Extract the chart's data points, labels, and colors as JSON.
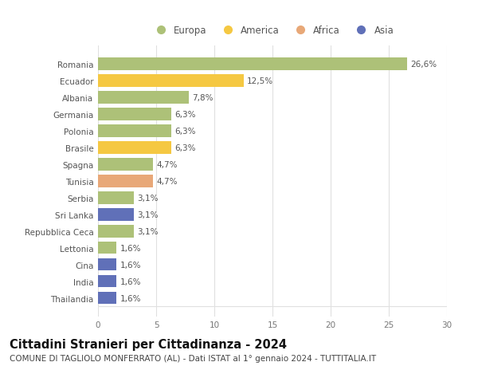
{
  "categories": [
    "Romania",
    "Ecuador",
    "Albania",
    "Germania",
    "Polonia",
    "Brasile",
    "Spagna",
    "Tunisia",
    "Serbia",
    "Sri Lanka",
    "Repubblica Ceca",
    "Lettonia",
    "Cina",
    "India",
    "Thailandia"
  ],
  "values": [
    26.6,
    12.5,
    7.8,
    6.3,
    6.3,
    6.3,
    4.7,
    4.7,
    3.1,
    3.1,
    3.1,
    1.6,
    1.6,
    1.6,
    1.6
  ],
  "labels": [
    "26,6%",
    "12,5%",
    "7,8%",
    "6,3%",
    "6,3%",
    "6,3%",
    "4,7%",
    "4,7%",
    "3,1%",
    "3,1%",
    "3,1%",
    "1,6%",
    "1,6%",
    "1,6%",
    "1,6%"
  ],
  "continents": [
    "Europa",
    "America",
    "Europa",
    "Europa",
    "Europa",
    "America",
    "Europa",
    "Africa",
    "Europa",
    "Asia",
    "Europa",
    "Europa",
    "Asia",
    "Asia",
    "Asia"
  ],
  "continent_colors": {
    "Europa": "#adc178",
    "America": "#f5c842",
    "Africa": "#e8a878",
    "Asia": "#6070b8"
  },
  "legend_order": [
    "Europa",
    "America",
    "Africa",
    "Asia"
  ],
  "title": "Cittadini Stranieri per Cittadinanza - 2024",
  "subtitle": "COMUNE DI TAGLIOLO MONFERRATO (AL) - Dati ISTAT al 1° gennaio 2024 - TUTTITALIA.IT",
  "xlim": [
    0,
    30
  ],
  "xticks": [
    0,
    5,
    10,
    15,
    20,
    25,
    30
  ],
  "background_color": "#ffffff",
  "grid_color": "#e0e0e0",
  "bar_height": 0.75,
  "title_fontsize": 10.5,
  "subtitle_fontsize": 7.5,
  "tick_fontsize": 7.5,
  "label_fontsize": 7.5,
  "legend_fontsize": 8.5
}
